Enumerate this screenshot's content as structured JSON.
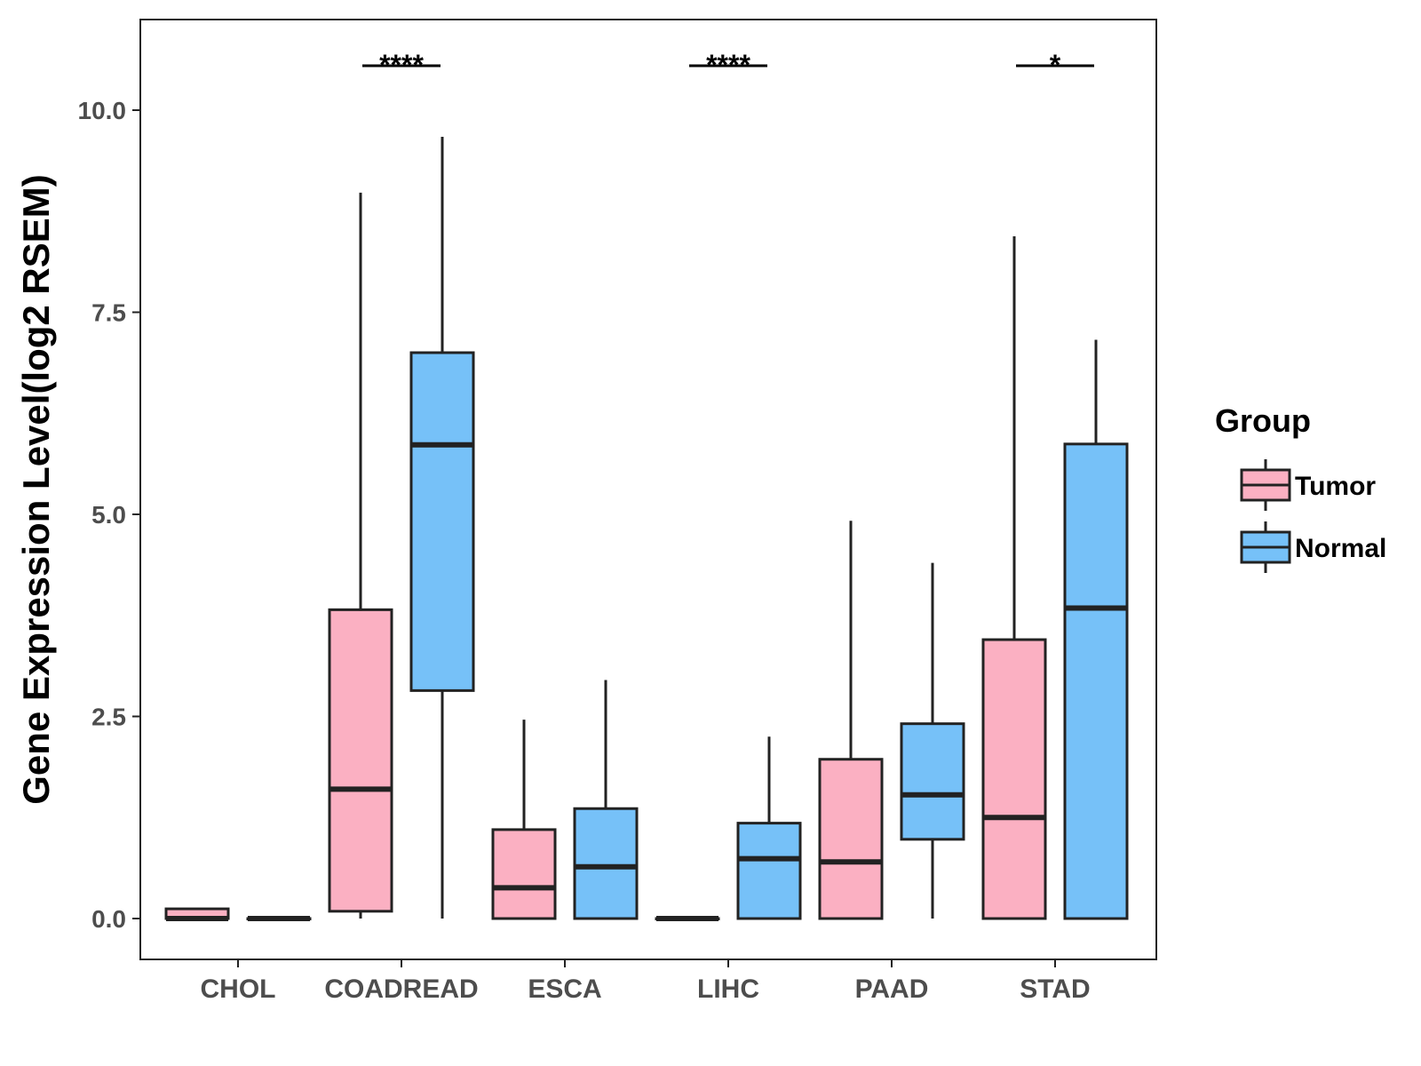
{
  "chart_data": {
    "type": "boxplot",
    "title": "",
    "xlabel": "",
    "ylabel": "Gene Expression Level(log2 RSEM)",
    "ylim": [
      -0.5,
      11.0
    ],
    "yticks": [
      0.0,
      2.5,
      5.0,
      7.5,
      10.0
    ],
    "ytick_labels": [
      "0.0",
      "2.5",
      "5.0",
      "7.5",
      "10.0"
    ],
    "categories": [
      "CHOL",
      "COADREAD",
      "ESCA",
      "LIHC",
      "PAAD",
      "STAD"
    ],
    "legend": {
      "title": "Group",
      "position": "right",
      "entries": [
        {
          "name": "Tumor",
          "color": "#FBB0C2"
        },
        {
          "name": "Normal",
          "color": "#76C1F8"
        }
      ]
    },
    "series": [
      {
        "name": "Tumor",
        "color": "#FBB0C2",
        "boxes": [
          {
            "category": "CHOL",
            "min": 0.0,
            "q1": 0.0,
            "median": 0.0,
            "q3": 0.12,
            "max": 0.12
          },
          {
            "category": "COADREAD",
            "min": 0.0,
            "q1": 0.09,
            "median": 1.6,
            "q3": 3.82,
            "max": 8.98
          },
          {
            "category": "ESCA",
            "min": 0.0,
            "q1": 0.0,
            "median": 0.38,
            "q3": 1.1,
            "max": 2.46
          },
          {
            "category": "LIHC",
            "min": 0.0,
            "q1": 0.0,
            "median": 0.0,
            "q3": 0.0,
            "max": 0.0
          },
          {
            "category": "PAAD",
            "min": 0.0,
            "q1": 0.0,
            "median": 0.7,
            "q3": 1.97,
            "max": 4.92
          },
          {
            "category": "STAD",
            "min": 0.0,
            "q1": 0.0,
            "median": 1.25,
            "q3": 3.45,
            "max": 8.44
          }
        ]
      },
      {
        "name": "Normal",
        "color": "#76C1F8",
        "boxes": [
          {
            "category": "CHOL",
            "min": 0.0,
            "q1": 0.0,
            "median": 0.0,
            "q3": 0.0,
            "max": 0.0
          },
          {
            "category": "COADREAD",
            "min": 0.0,
            "q1": 2.82,
            "median": 5.86,
            "q3": 7.0,
            "max": 9.67
          },
          {
            "category": "ESCA",
            "min": 0.0,
            "q1": 0.0,
            "median": 0.64,
            "q3": 1.36,
            "max": 2.95
          },
          {
            "category": "LIHC",
            "min": 0.0,
            "q1": 0.0,
            "median": 0.74,
            "q3": 1.18,
            "max": 2.25
          },
          {
            "category": "PAAD",
            "min": 0.0,
            "q1": 0.98,
            "median": 1.53,
            "q3": 2.41,
            "max": 4.4
          },
          {
            "category": "STAD",
            "min": 0.0,
            "q1": 0.0,
            "median": 3.84,
            "q3": 5.87,
            "max": 7.16
          }
        ]
      }
    ],
    "significance": [
      {
        "category": "COADREAD",
        "label": "****"
      },
      {
        "category": "LIHC",
        "label": "****"
      },
      {
        "category": "STAD",
        "label": "*"
      }
    ],
    "significance_level": 10.55
  }
}
